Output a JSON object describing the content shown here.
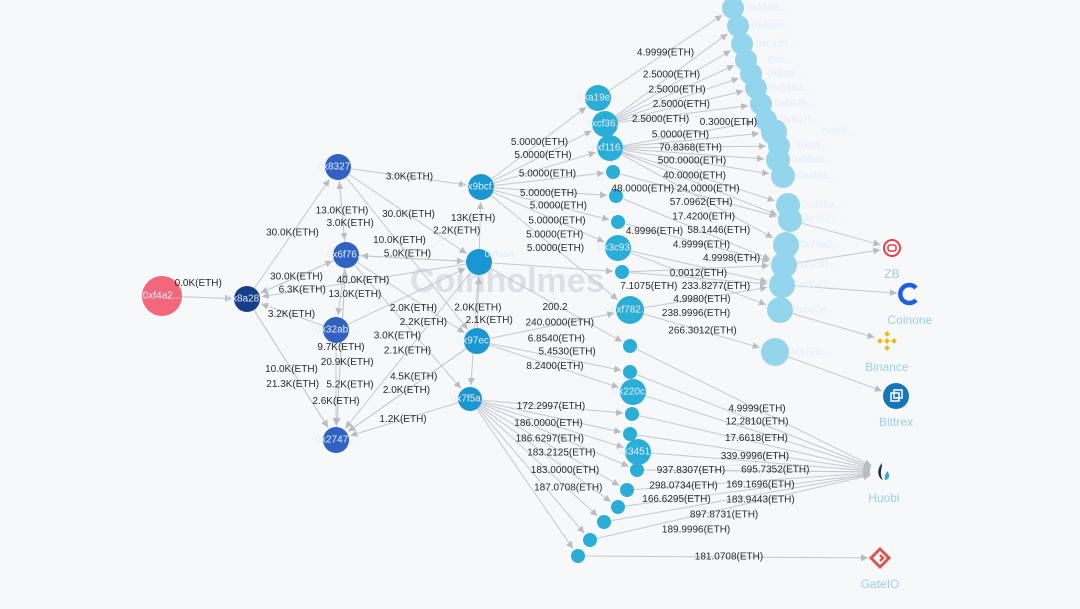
{
  "watermark": "Coinholmes",
  "colors": {
    "source": "#f2677a",
    "hub": "#153f87",
    "tier1": "#2f62c2",
    "tier2": "#1a97d3",
    "tier3": "#2aaed8",
    "tier4": "#93d5ec",
    "edge": "#c4c8ce"
  },
  "nodes": [
    {
      "id": "s",
      "label": "0xf4a2...",
      "tier": "source"
    },
    {
      "id": "a",
      "label": "0x8a28...",
      "tier": "hub"
    },
    {
      "id": "b1",
      "label": "0x8327...",
      "tier": "tier1"
    },
    {
      "id": "b2",
      "label": "0x6f76...",
      "tier": "tier1"
    },
    {
      "id": "b3",
      "label": "0x32ab...",
      "tier": "tier1"
    },
    {
      "id": "b4",
      "label": "0x2747...",
      "tier": "tier1"
    },
    {
      "id": "c1",
      "label": "0x9bcf...",
      "tier": "tier2"
    },
    {
      "id": "c2",
      "label": "0xfca4...",
      "tier": "tier2"
    },
    {
      "id": "c3",
      "label": "0x97ec...",
      "tier": "tier2"
    },
    {
      "id": "c4",
      "label": "0x7f5a...",
      "tier": "tier2"
    },
    {
      "id": "d1",
      "label": "0xa19e...",
      "tier": "tier3"
    },
    {
      "id": "d2",
      "label": "0xcf36...",
      "tier": "tier3"
    },
    {
      "id": "d3",
      "label": "0xf116...",
      "tier": "tier3"
    },
    {
      "id": "d4",
      "label": "",
      "tier": "tier3"
    },
    {
      "id": "d5",
      "label": "",
      "tier": "tier3"
    },
    {
      "id": "d6",
      "label": "",
      "tier": "tier3"
    },
    {
      "id": "d7",
      "label": "0x3c93...",
      "tier": "tier3"
    },
    {
      "id": "d8",
      "label": "",
      "tier": "tier3"
    },
    {
      "id": "d9",
      "label": "0xf782...",
      "tier": "tier3"
    },
    {
      "id": "d10",
      "label": "",
      "tier": "tier3"
    },
    {
      "id": "d11",
      "label": "",
      "tier": "tier3"
    },
    {
      "id": "d12",
      "label": "0x220c...",
      "tier": "tier3"
    },
    {
      "id": "d13",
      "label": "",
      "tier": "tier3"
    },
    {
      "id": "d14",
      "label": "",
      "tier": "tier3"
    },
    {
      "id": "d15",
      "label": "0x3451...",
      "tier": "tier3"
    },
    {
      "id": "d16",
      "label": "",
      "tier": "tier3"
    },
    {
      "id": "d17",
      "label": "",
      "tier": "tier3"
    },
    {
      "id": "d18",
      "label": "",
      "tier": "tier3"
    },
    {
      "id": "d19",
      "label": "",
      "tier": "tier3"
    },
    {
      "id": "d20",
      "label": "",
      "tier": "tier3"
    },
    {
      "id": "d21",
      "label": "",
      "tier": "tier3"
    },
    {
      "id": "e1",
      "label": "0x1586...",
      "tier": "tier4"
    },
    {
      "id": "e2",
      "label": "0x4ace...",
      "tier": "tier4"
    },
    {
      "id": "e3",
      "label": "0xca39...",
      "tier": "tier4"
    },
    {
      "id": "e4",
      "label": "0x3...",
      "tier": "tier4"
    },
    {
      "id": "e5",
      "label": "0x8eb...",
      "tier": "tier4"
    },
    {
      "id": "e6",
      "label": "0x54ed...",
      "tier": "tier4"
    },
    {
      "id": "e7",
      "label": "0x6676...",
      "tier": "tier4"
    },
    {
      "id": "e8",
      "label": "0x807f...",
      "tier": "tier4"
    },
    {
      "id": "e9",
      "label": "0x06f...",
      "tier": "tier4"
    },
    {
      "id": "e10",
      "label": "0x0a...",
      "tier": "tier4"
    },
    {
      "id": "e11",
      "label": "0x05d5...",
      "tier": "tier4"
    },
    {
      "id": "e12",
      "label": "0x4f41...",
      "tier": "tier4"
    },
    {
      "id": "e13",
      "label": "0xd86a...",
      "tier": "tier4"
    },
    {
      "id": "e14",
      "label": "0x7972...",
      "tier": "tier4"
    },
    {
      "id": "e15",
      "label": "0x78a5...",
      "tier": "tier4"
    },
    {
      "id": "e16",
      "label": "0x1c81...",
      "tier": "tier4"
    },
    {
      "id": "e17",
      "label": "0x8067...",
      "tier": "tier4"
    },
    {
      "id": "e18",
      "label": "0xbd2e...",
      "tier": "tier4"
    },
    {
      "id": "e19",
      "label": "0x477b...",
      "tier": "tier4"
    }
  ],
  "exchanges": [
    {
      "id": "zb",
      "label": "ZB",
      "icon": "zb-logo-icon",
      "color": "#e0434b"
    },
    {
      "id": "coinone",
      "label": "Coinone",
      "icon": "coinone-logo-icon",
      "color": "#1f5fe0"
    },
    {
      "id": "binance",
      "label": "Binance",
      "icon": "binance-logo-icon",
      "color": "#f0b90b"
    },
    {
      "id": "bittrex",
      "label": "Bittrex",
      "icon": "bittrex-logo-icon",
      "color": "#1775b9"
    },
    {
      "id": "huobi",
      "label": "Huobi",
      "icon": "huobi-logo-icon",
      "color": "#1e2a3a"
    },
    {
      "id": "gateio",
      "label": "GateIO",
      "icon": "gateio-logo-icon",
      "color": "#d2584d"
    }
  ],
  "edges": [
    {
      "from": "s",
      "to": "a",
      "label": "0.0K(ETH)"
    },
    {
      "from": "a",
      "to": "b1",
      "label": "30.0K(ETH)"
    },
    {
      "from": "a",
      "to": "b2",
      "label": "30.0K(ETH)"
    },
    {
      "from": "b2",
      "to": "a",
      "label": "6.3K(ETH)"
    },
    {
      "from": "c2",
      "to": "a",
      "label": "40.0K(ETH)"
    },
    {
      "from": "b3",
      "to": "a",
      "label": "3.2K(ETH)"
    },
    {
      "from": "a",
      "to": "b4",
      "label": "10.0K(ETH)"
    },
    {
      "from": "b1",
      "to": "c1",
      "label": "3.0K(ETH)"
    },
    {
      "from": "b1",
      "to": "c2",
      "label": "30.0K(ETH)"
    },
    {
      "from": "b1",
      "to": "b2",
      "label": "13.0K(ETH)"
    },
    {
      "from": "b2",
      "to": "b1",
      "label": "3.0K(ETH)"
    },
    {
      "from": "b1",
      "to": "c3",
      "label": "5.0K(ETH)"
    },
    {
      "from": "b2",
      "to": "c2",
      "label": "10.0K(ETH)"
    },
    {
      "from": "c2",
      "to": "b2",
      "label": "2.2K(ETH)"
    },
    {
      "from": "b3",
      "to": "c2",
      "label": "2.0K(ETH)"
    },
    {
      "from": "b2",
      "to": "c3",
      "label": "2.2K(ETH)"
    },
    {
      "from": "b2",
      "to": "c4",
      "label": "3.0K(ETH)"
    },
    {
      "from": "b2",
      "to": "b3",
      "label": "13.0K(ETH)"
    },
    {
      "from": "b4",
      "to": "b2",
      "label": "9.7K(ETH)"
    },
    {
      "from": "a",
      "to": "b4",
      "label": "21.3K(ETH)"
    },
    {
      "from": "b3",
      "to": "b4",
      "label": "5.2K(ETH)"
    },
    {
      "from": "b2",
      "to": "b4",
      "label": "20.9K(ETH)"
    },
    {
      "from": "b3",
      "to": "b4",
      "label": "2.6K(ETH)"
    },
    {
      "from": "c2",
      "to": "b4",
      "label": "2.1K(ETH)"
    },
    {
      "from": "c3",
      "to": "b4",
      "label": "2.0K(ETH)"
    },
    {
      "from": "c3",
      "to": "b4",
      "label": "4.5K(ETH)"
    },
    {
      "from": "c4",
      "to": "b4",
      "label": "1.2K(ETH)"
    },
    {
      "from": "c2",
      "to": "c1",
      "label": "13K(ETH)"
    },
    {
      "from": "c3",
      "to": "c2",
      "label": "2.0K(ETH)"
    },
    {
      "from": "c2",
      "to": "c4",
      "label": "2.1K(ETH)"
    },
    {
      "from": "c1",
      "to": "d1",
      "label": "5.0000(ETH)"
    },
    {
      "from": "c1",
      "to": "d2",
      "label": "5.0000(ETH)"
    },
    {
      "from": "c1",
      "to": "d3",
      "label": "5.0000(ETH)"
    },
    {
      "from": "c1",
      "to": "d4",
      "label": "5.0000(ETH)"
    },
    {
      "from": "c1",
      "to": "d5",
      "label": "5.0000(ETH)"
    },
    {
      "from": "c1",
      "to": "d6",
      "label": "5.0000(ETH)"
    },
    {
      "from": "c1",
      "to": "d7",
      "label": "5.0000(ETH)"
    },
    {
      "from": "c1",
      "to": "d9",
      "label": "5.0000(ETH)"
    },
    {
      "from": "c2",
      "to": "d8",
      "label": "200.2"
    },
    {
      "from": "c2",
      "to": "d10",
      "label": "240.0000(ETH)"
    },
    {
      "from": "c3",
      "to": "d9",
      "label": "6.8540(ETH)"
    },
    {
      "from": "c3",
      "to": "d12",
      "label": "8.2400(ETH)"
    },
    {
      "from": "c3",
      "to": "d11",
      "label": "5.4530(ETH)"
    },
    {
      "from": "c4",
      "to": "d13",
      "label": "172.2997(ETH)"
    },
    {
      "from": "c4",
      "to": "d14",
      "label": "186.0000(ETH)"
    },
    {
      "from": "c4",
      "to": "d15",
      "label": "186.6297(ETH)"
    },
    {
      "from": "c4",
      "to": "d16",
      "label": "183.2125(ETH)"
    },
    {
      "from": "c4",
      "to": "d17",
      "label": "183.0000(ETH)"
    },
    {
      "from": "c4",
      "to": "d18",
      "label": "187.0708(ETH)"
    },
    {
      "from": "c4",
      "to": "d19",
      "label": ""
    },
    {
      "from": "c4",
      "to": "d20",
      "label": ""
    },
    {
      "from": "c4",
      "to": "d21",
      "label": ""
    },
    {
      "from": "d1",
      "to": "e1",
      "label": "4.9999(ETH)"
    },
    {
      "from": "d2",
      "to": "e2",
      "label": "2.5000(ETH)"
    },
    {
      "from": "d2",
      "to": "e3",
      "label": "2.5000(ETH)"
    },
    {
      "from": "d2",
      "to": "e4",
      "label": "2.5000(ETH)"
    },
    {
      "from": "d2",
      "to": "e5",
      "label": "2.5000(ETH)"
    },
    {
      "from": "d2",
      "to": "e6",
      "label": "5.0000(ETH)"
    },
    {
      "from": "d2",
      "to": "e7",
      "label": "0.3000(ETH)"
    },
    {
      "from": "d3",
      "to": "e8",
      "label": "70.8368(ETH)"
    },
    {
      "from": "d3",
      "to": "e9",
      "label": "500.0000(ETH)"
    },
    {
      "from": "d3",
      "to": "e10",
      "label": "40.0000(ETH)"
    },
    {
      "from": "d3",
      "to": "e11",
      "label": "24.0000(ETH)"
    },
    {
      "from": "d3",
      "to": "e12",
      "label": "57.0962(ETH)"
    },
    {
      "from": "d3",
      "to": "e13",
      "label": "17.4200(ETH)"
    },
    {
      "from": "d3",
      "to": "e14",
      "label": "58.1446(ETH)"
    },
    {
      "from": "d3",
      "to": "e15",
      "label": "48.0000(ETH)"
    },
    {
      "from": "d4",
      "to": "e14",
      "label": "4.9999(ETH)"
    },
    {
      "from": "d5",
      "to": "e16",
      "label": "4.9998(ETH)"
    },
    {
      "from": "d6",
      "to": "e16",
      "label": "4.9996(ETH)"
    },
    {
      "from": "d7",
      "to": "e17",
      "label": "0.0012(ETH)"
    },
    {
      "from": "d8",
      "to": "e16",
      "label": "233.8277(ETH)"
    },
    {
      "from": "d8",
      "to": "e17",
      "label": "4.9980(ETH)"
    },
    {
      "from": "d9",
      "to": "e17",
      "label": "238.9996(ETH)"
    },
    {
      "from": "d7",
      "to": "e18",
      "label": "7.1075(ETH)"
    },
    {
      "from": "d9",
      "to": "e19",
      "label": "266.3012(ETH)"
    },
    {
      "from": "e14",
      "to": "zb",
      "label": ""
    },
    {
      "from": "e16",
      "to": "zb",
      "label": ""
    },
    {
      "from": "e17",
      "to": "coinone",
      "label": ""
    },
    {
      "from": "e18",
      "to": "binance",
      "label": ""
    },
    {
      "from": "e19",
      "to": "bittrex",
      "label": ""
    },
    {
      "from": "d10",
      "to": "huobi",
      "label": "4.9999(ETH)"
    },
    {
      "from": "d11",
      "to": "huobi",
      "label": "12.2810(ETH)"
    },
    {
      "from": "d12",
      "to": "huobi",
      "label": "17.6618(ETH)"
    },
    {
      "from": "d13",
      "to": "huobi",
      "label": "339.9996(ETH)"
    },
    {
      "from": "d14",
      "to": "huobi",
      "label": "695.7352(ETH)"
    },
    {
      "from": "d15",
      "to": "huobi",
      "label": "937.8307(ETH)"
    },
    {
      "from": "d16",
      "to": "huobi",
      "label": "169.1696(ETH)"
    },
    {
      "from": "d16",
      "to": "huobi",
      "label": "183.9443(ETH)"
    },
    {
      "from": "d17",
      "to": "huobi",
      "label": "298.0734(ETH)"
    },
    {
      "from": "d18",
      "to": "huobi",
      "label": "166.6295(ETH)"
    },
    {
      "from": "d19",
      "to": "huobi",
      "label": "897.8731(ETH)"
    },
    {
      "from": "d20",
      "to": "huobi",
      "label": "189.9996(ETH)"
    },
    {
      "from": "d21",
      "to": "gateio",
      "label": "181.0708(ETH)"
    }
  ]
}
